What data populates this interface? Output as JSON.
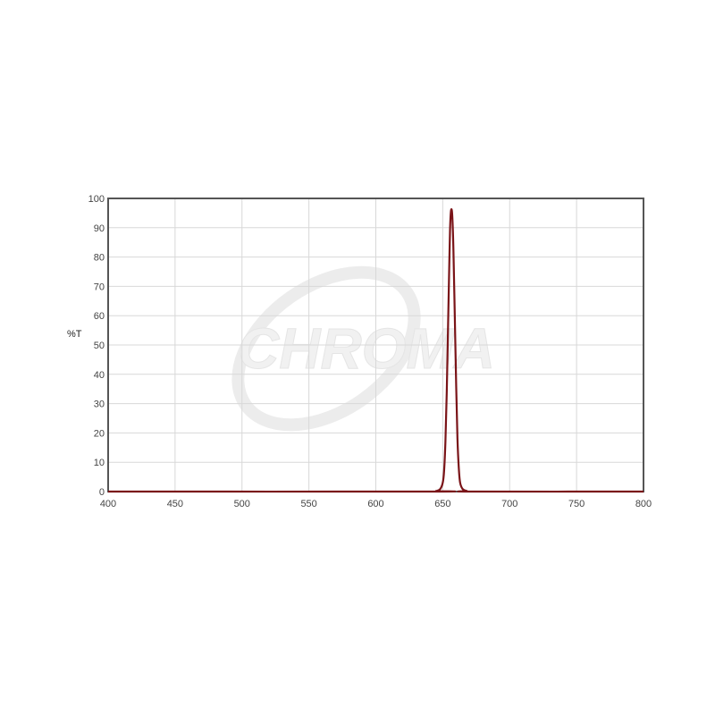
{
  "watermark": {
    "logo_text": "CHROMA"
  },
  "chart_data": {
    "type": "line",
    "title": "",
    "xlabel": "",
    "ylabel": "%T",
    "xlim": [
      400,
      800
    ],
    "ylim": [
      0,
      100
    ],
    "xticks": [
      400,
      450,
      500,
      550,
      600,
      650,
      700,
      750,
      800
    ],
    "yticks": [
      0,
      10,
      20,
      30,
      40,
      50,
      60,
      70,
      80,
      90,
      100
    ],
    "grid": true,
    "legend": "none",
    "series": [
      {
        "color": "#7a1418",
        "x": [
          400,
          640,
          645,
          648,
          650,
          651,
          652,
          653,
          654,
          655,
          655.5,
          656,
          656.5,
          657,
          657.5,
          658,
          659,
          660,
          661,
          662,
          663,
          665,
          668,
          672,
          800
        ],
        "y": [
          0,
          0,
          0.2,
          0.8,
          3,
          7,
          17,
          34,
          57,
          80,
          90,
          95,
          96.3,
          95,
          90,
          82,
          60,
          37,
          18,
          8,
          3,
          0.8,
          0.2,
          0,
          0
        ]
      }
    ]
  }
}
